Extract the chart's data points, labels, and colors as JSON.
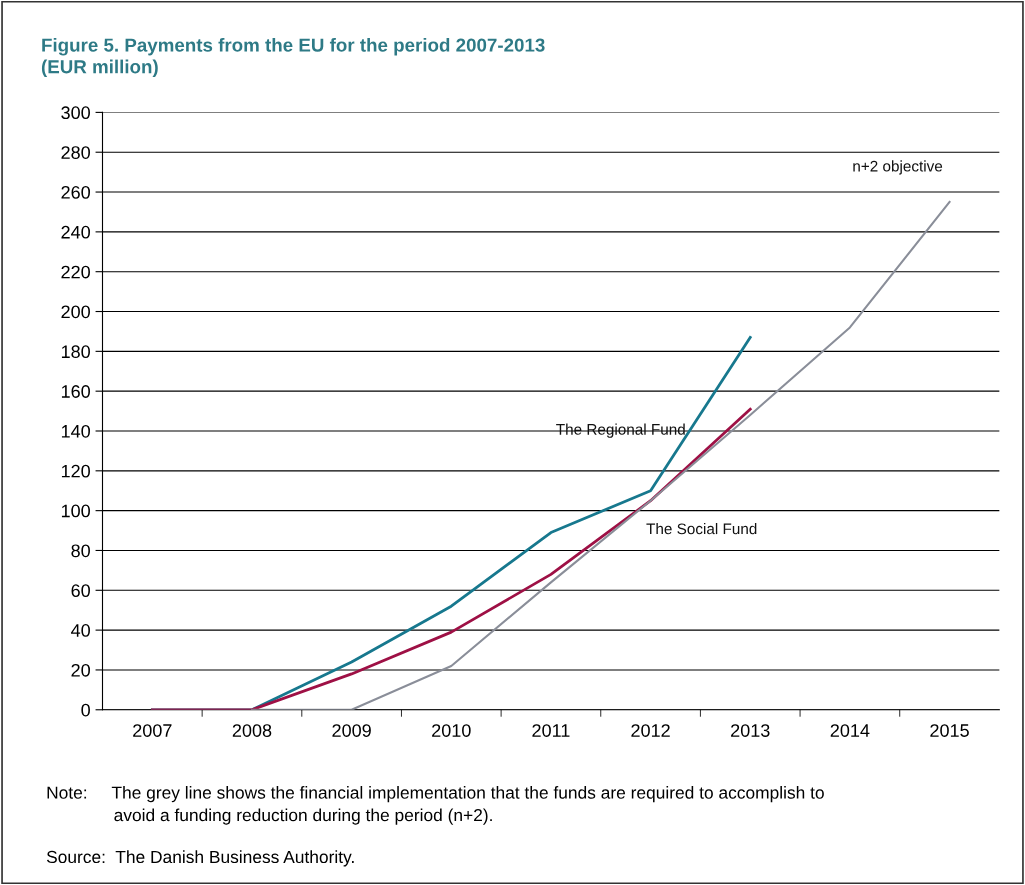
{
  "chart_data": {
    "type": "line",
    "title": "Figure 5. Payments from the EU for the period 2007-2013\n(EUR million)",
    "categories": [
      "2007",
      "2008",
      "2009",
      "2010",
      "2011",
      "2012",
      "2013",
      "2014",
      "2015"
    ],
    "series": [
      {
        "name": "The Regional Fund",
        "color": "#17788e",
        "values": [
          0,
          0,
          24,
          52,
          89,
          110,
          187,
          null,
          null
        ]
      },
      {
        "name": "The Social Fund",
        "color": "#9e1045",
        "values": [
          0,
          0,
          18,
          39,
          68,
          105,
          151,
          null,
          null
        ]
      },
      {
        "name": "n+2 objective",
        "color": "#8a8e99",
        "values": [
          null,
          0,
          0,
          22,
          64,
          105,
          148,
          192,
          255
        ]
      }
    ],
    "ylim": [
      0,
      300
    ],
    "yticks": [
      0,
      20,
      40,
      60,
      80,
      100,
      120,
      140,
      160,
      180,
      200,
      220,
      240,
      260,
      280,
      300
    ],
    "grid": "y",
    "marker": "none",
    "line_style": "solid",
    "annotations": [
      "Note:     The grey line shows the financial implementation that the funds are required to accomplish to\n              avoid a funding reduction during the period (n+2).",
      "Source:  The Danish Business Authority."
    ]
  }
}
